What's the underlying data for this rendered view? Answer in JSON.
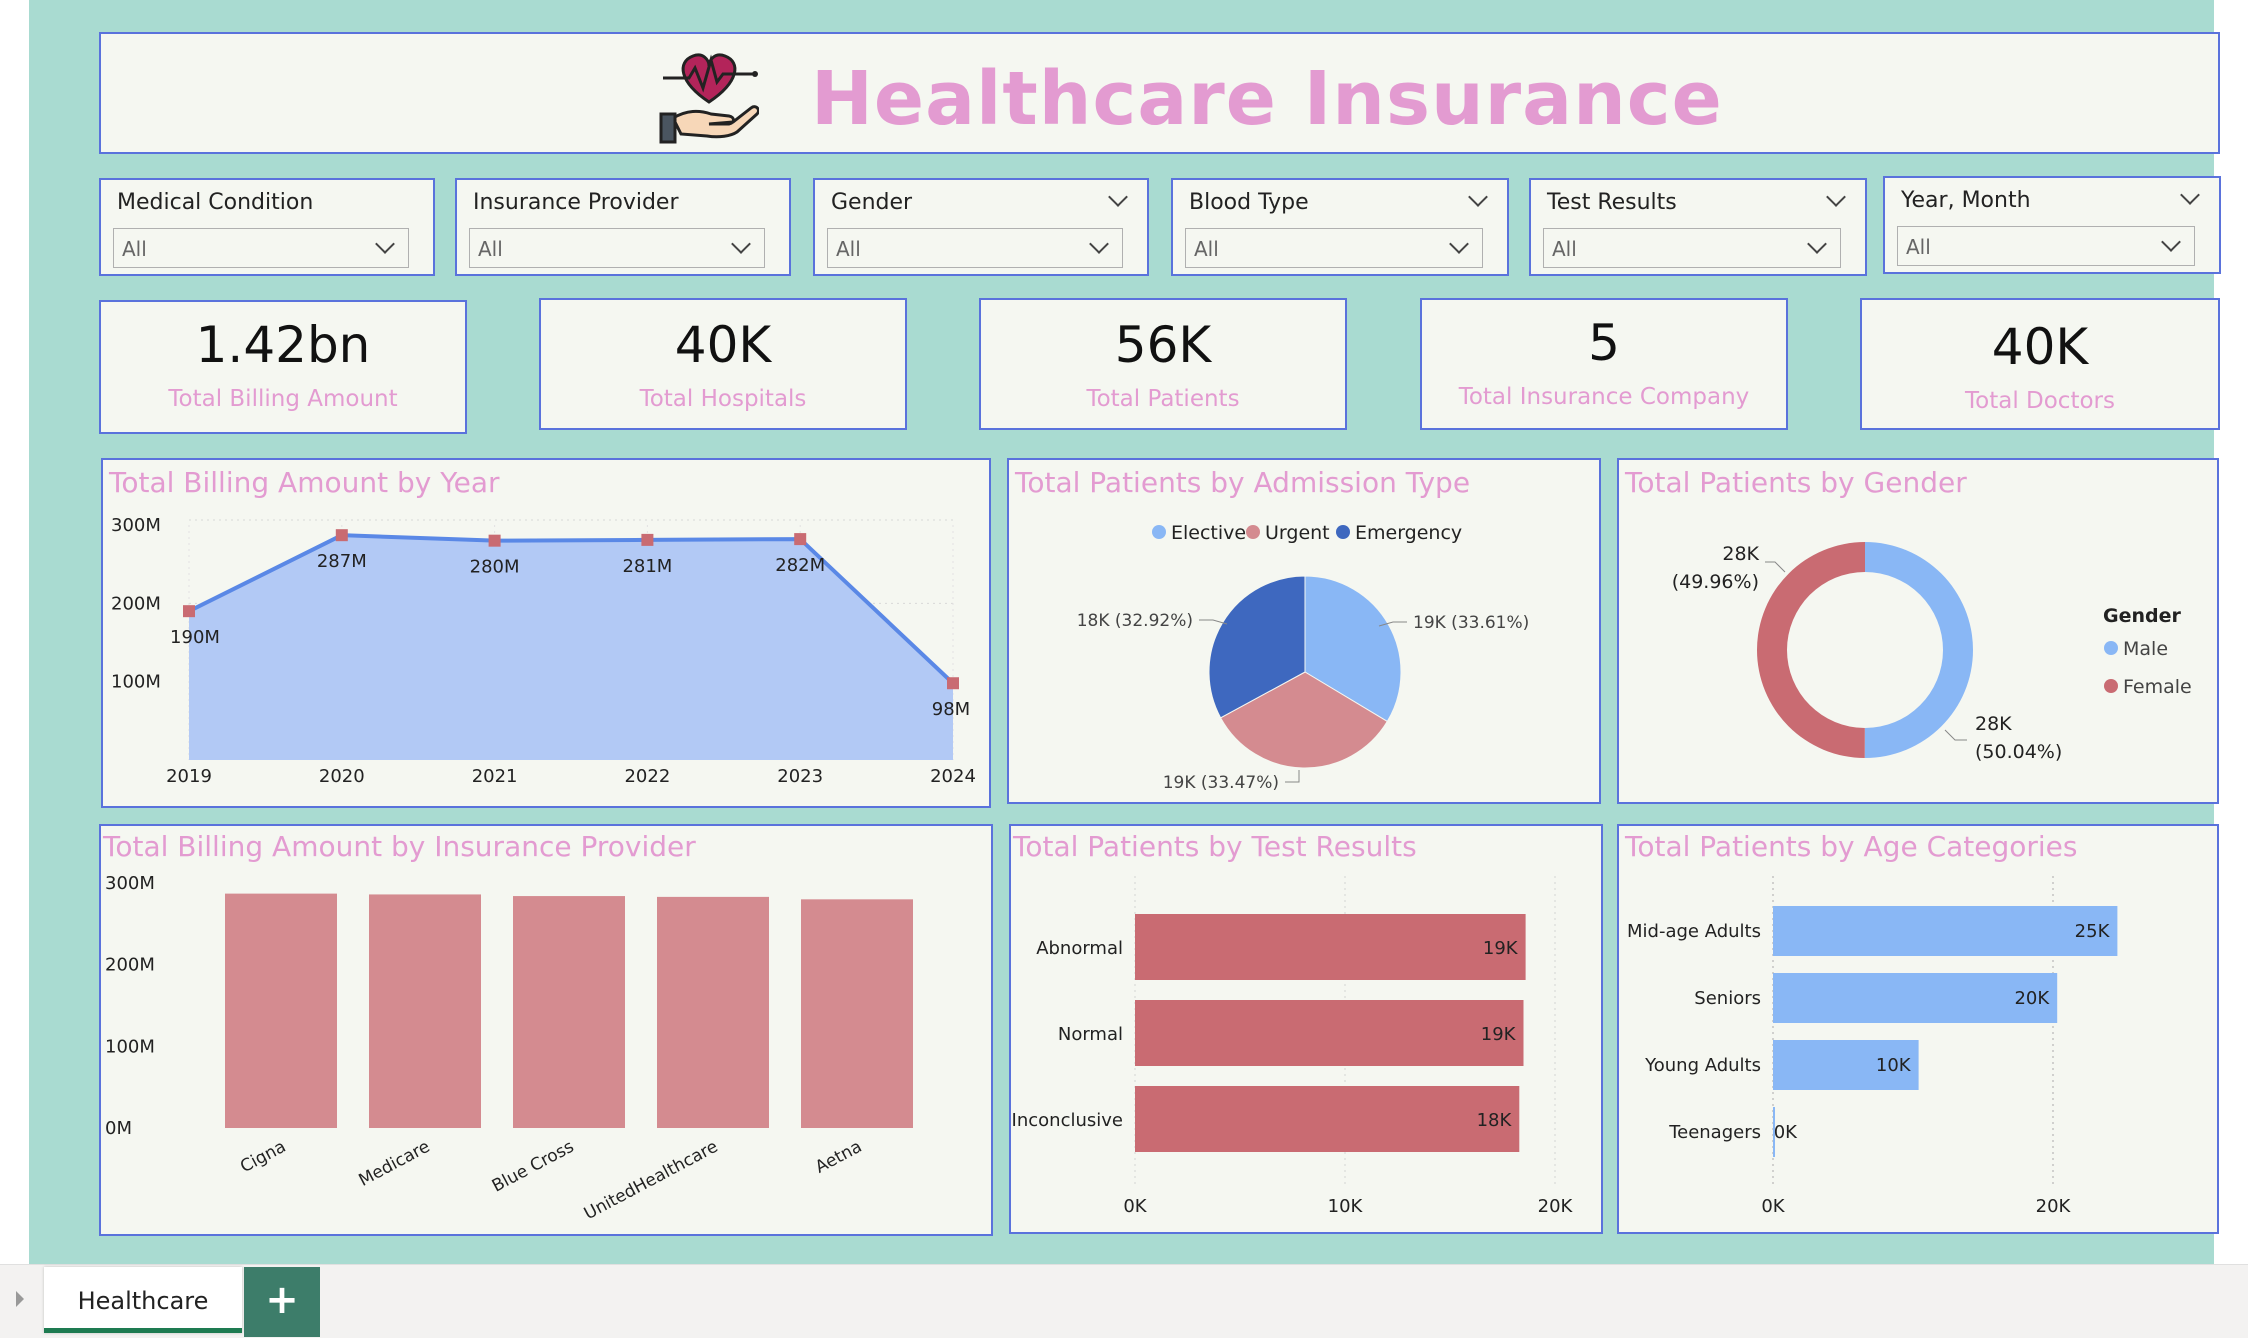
{
  "header": {
    "title": "Healthcare Insurance",
    "logo": "heart-in-hand-icon"
  },
  "slicers": [
    {
      "title": "Medical Condition",
      "value": "All"
    },
    {
      "title": "Insurance Provider",
      "value": "All"
    },
    {
      "title": "Gender",
      "value": "All"
    },
    {
      "title": "Blood Type",
      "value": "All"
    },
    {
      "title": "Test Results",
      "value": "All"
    },
    {
      "title": "Year, Month",
      "value": "All"
    }
  ],
  "kpis": [
    {
      "value": "1.42bn",
      "label": "Total Billing Amount"
    },
    {
      "value": "40K",
      "label": "Total Hospitals"
    },
    {
      "value": "56K",
      "label": "Total Patients"
    },
    {
      "value": "5",
      "label": "Total Insurance Company"
    },
    {
      "value": "40K",
      "label": "Total Doctors"
    }
  ],
  "colors": {
    "accent": "#e39bd1",
    "border": "#5a72dc",
    "blue": "#89b7f5",
    "blueDark": "#3e68bf",
    "pink": "#d48b90",
    "red": "#c96b72",
    "areaFill": "#b2c9f5",
    "areaLine": "#5a88e6",
    "background": "#a9dbd1"
  },
  "chart_data": [
    {
      "type": "area",
      "title": "Total Billing Amount by Year",
      "x": [
        "2019",
        "2020",
        "2021",
        "2022",
        "2023",
        "2024"
      ],
      "values": [
        190,
        287,
        280,
        281,
        282,
        98
      ],
      "data_labels": [
        "190M",
        "287M",
        "280M",
        "281M",
        "282M",
        "98M"
      ],
      "yticks": [
        "100M",
        "200M",
        "300M"
      ],
      "ylim": [
        0,
        300
      ],
      "grid": true
    },
    {
      "type": "pie",
      "title": "Total Patients by Admission Type",
      "legend": [
        "Elective",
        "Urgent",
        "Emergency"
      ],
      "values": [
        19,
        19,
        18
      ],
      "slice_labels": [
        "19K (33.61%)",
        "19K (33.47%)",
        "18K (32.92%)"
      ],
      "percent": [
        33.61,
        33.47,
        32.92
      ]
    },
    {
      "type": "pie",
      "title": "Total Patients by Gender",
      "legend_title": "Gender",
      "legend": [
        "Male",
        "Female"
      ],
      "values": [
        28,
        28
      ],
      "percent": [
        50.04,
        49.96
      ],
      "slice_labels": [
        [
          "28K",
          "(50.04%)"
        ],
        [
          "28K",
          "(49.96%)"
        ]
      ]
    },
    {
      "type": "bar",
      "title": "Total Billing Amount by Insurance Provider",
      "categories": [
        "Cigna",
        "Medicare",
        "Blue Cross",
        "UnitedHealthcare",
        "Aetna"
      ],
      "values": [
        287,
        286,
        284,
        283,
        280
      ],
      "yticks": [
        "0M",
        "100M",
        "200M",
        "300M"
      ],
      "ylim": [
        0,
        300
      ]
    },
    {
      "type": "bar",
      "orientation": "horizontal",
      "title": "Total Patients by Test Results",
      "categories": [
        "Abnormal",
        "Normal",
        "Inconclusive"
      ],
      "values": [
        18.6,
        18.5,
        18.3
      ],
      "data_labels": [
        "19K",
        "19K",
        "18K"
      ],
      "xticks": [
        "0K",
        "10K",
        "20K"
      ],
      "xlim": [
        0,
        20
      ]
    },
    {
      "type": "bar",
      "orientation": "horizontal",
      "title": "Total Patients by Age Categories",
      "categories": [
        "Mid-age Adults",
        "Seniors",
        "Young Adults",
        "Teenagers"
      ],
      "values": [
        24.6,
        20.3,
        10.4,
        0.1
      ],
      "data_labels": [
        "25K",
        "20K",
        "10K",
        "0K"
      ],
      "xticks": [
        "0K",
        "20K"
      ],
      "xlim": [
        0,
        30
      ]
    }
  ],
  "tabs": {
    "active": "Healthcare",
    "add": "+"
  }
}
